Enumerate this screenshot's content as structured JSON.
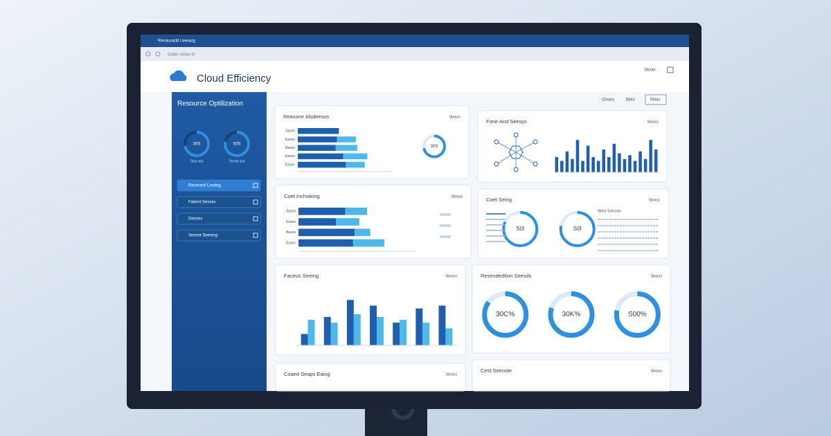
{
  "window": {
    "title": "Resouracld Leesarg",
    "address": "Gxller Ushor D",
    "user": "Sbxas"
  },
  "header": {
    "title": "Cloud Efficiency",
    "buttons": [
      "Cloucs",
      "Sbxs",
      "Sbias"
    ]
  },
  "sidebar": {
    "title": "Resource Optilization",
    "gauges": [
      {
        "label": "30S",
        "value": 72,
        "caption": "Tsos sos"
      },
      {
        "label": "S0S",
        "value": 78,
        "caption": "Tesost sos"
      }
    ],
    "menu": [
      "Resesent Lesdng",
      "Faltent Sesses",
      "Denses",
      "Sesent Seesing"
    ]
  },
  "panels": [
    {
      "kind": "hbar",
      "title": "Reasone Alsdeesos",
      "tag": "Sbiass",
      "rows": [
        "Sases",
        "Eases",
        "Bases",
        "Eases",
        "Easec"
      ],
      "xlim": [
        0,
        150
      ],
      "series": [
        {
          "color": "#1f5fae",
          "values": [
            65,
            62,
            60,
            72,
            76
          ]
        },
        {
          "color": "#4fb8ea",
          "values": [
            0,
            30,
            34,
            38,
            30
          ]
        }
      ],
      "donut": {
        "label": "30S",
        "value": 72
      }
    },
    {
      "kind": "vbar",
      "title": "Fone And Seesys",
      "tag": "Sbiass",
      "ylim": [
        0,
        100
      ],
      "series": [
        {
          "color": "#1f5fae",
          "values": [
            40,
            30,
            55,
            35,
            85,
            30,
            70,
            40,
            30,
            60,
            40,
            75,
            50,
            35,
            45,
            30,
            55,
            35,
            85,
            60
          ]
        }
      ]
    },
    {
      "kind": "hbar",
      "title": "Coet Inchiaking",
      "tag": "Sbiass",
      "rows": [
        "Sases",
        "Eases",
        "Bases",
        "Easec"
      ],
      "xlim": [
        0,
        150
      ],
      "series": [
        {
          "color": "#1f5fae",
          "values": [
            60,
            48,
            72,
            70
          ]
        },
        {
          "color": "#4fb8ea",
          "values": [
            28,
            30,
            20,
            40
          ]
        }
      ]
    },
    {
      "kind": "donuts",
      "title": "Coet Seing",
      "tag": "Sbiass",
      "list_title": "Wela Sotcyes",
      "donuts": [
        {
          "label": "S0I",
          "value": 82
        },
        {
          "label": "S0I",
          "value": 78
        }
      ]
    },
    {
      "kind": "vbar",
      "title": "Faceus Seeing",
      "tag": "Sbiass",
      "ylim": [
        0,
        100
      ],
      "series": [
        {
          "color": "#1f5fae",
          "values": [
            20,
            50,
            80,
            70,
            40,
            65,
            70
          ]
        },
        {
          "color": "#4fb8ea",
          "values": [
            45,
            40,
            55,
            50,
            45,
            40,
            30
          ]
        }
      ]
    },
    {
      "kind": "donuts",
      "title": "Resendedtion Seesds",
      "tag": "Sbiass",
      "donuts": [
        {
          "label": "30C%",
          "value": 85
        },
        {
          "label": "30K%",
          "value": 80
        },
        {
          "label": "S00%",
          "value": 78
        }
      ]
    },
    {
      "kind": "empty",
      "title": "Coaed Seaps Eaing",
      "tag": "Sbiass"
    },
    {
      "kind": "empty",
      "title": "Cest Seeoste",
      "tag": "Sbiass"
    }
  ]
}
